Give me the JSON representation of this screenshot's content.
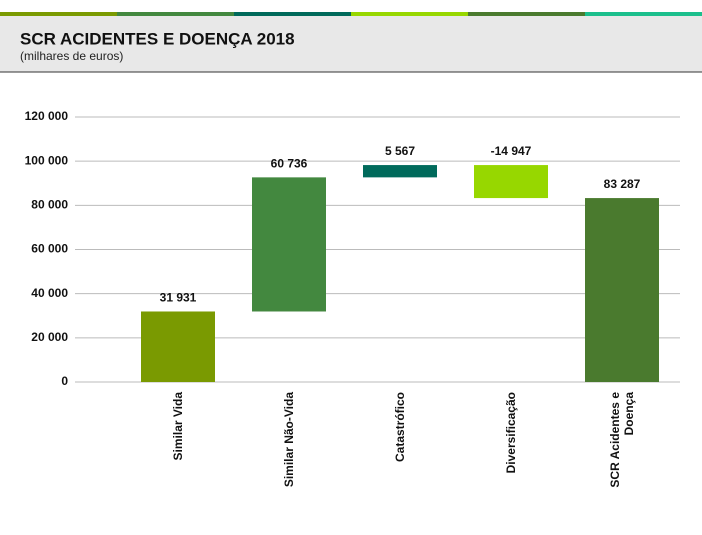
{
  "chart_data": {
    "type": "waterfall",
    "title": "SCR ACIDENTES E DOENÇA 2018",
    "subtitle": "(milhares de euros)",
    "categories": [
      "Similar Vida",
      "Similar Não-Vida",
      "Catastrófico",
      "Diversificação",
      "SCR Acidentes e Doença"
    ],
    "values": [
      31931,
      60736,
      5567,
      -14947,
      83287
    ],
    "value_labels": [
      "31 931",
      "60 736",
      "5 567",
      "-14 947",
      "83 287"
    ],
    "totals": [
      false,
      false,
      false,
      false,
      true
    ],
    "colors": [
      "#7a9a01",
      "#43883f",
      "#006a5b",
      "#97d700",
      "#4a7a2e"
    ],
    "ylim": [
      0,
      120000
    ],
    "yticks": [
      0,
      {
        "value": 20000,
        "label": "20 000"
      },
      {
        "value": 40000,
        "label": "40 000"
      },
      {
        "value": 60000,
        "label": "60 000"
      },
      {
        "value": 80000,
        "label": "80 000"
      },
      {
        "value": 100000,
        "label": "100 000"
      },
      {
        "value": 120000,
        "label": "120 000"
      }
    ],
    "grid": true
  }
}
